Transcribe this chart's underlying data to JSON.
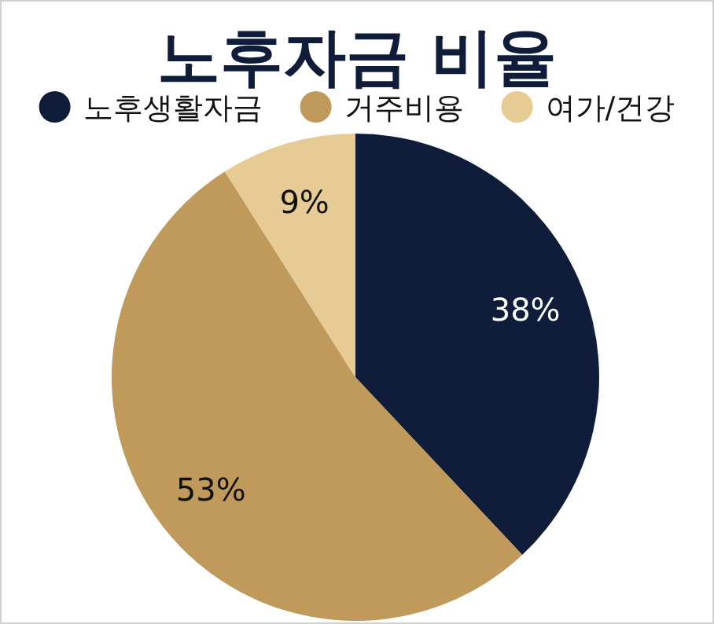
{
  "chart_data": {
    "type": "pie",
    "title": "노후자금 비율",
    "legend": "top",
    "categories": [
      "노후생활자금",
      "거주비용",
      "여가/건강"
    ],
    "values": [
      38,
      53,
      9
    ],
    "colors": [
      "#0f1d3a",
      "#c09a5b",
      "#e6cb94"
    ],
    "value_labels": [
      "38%",
      "53%",
      "9%"
    ]
  }
}
